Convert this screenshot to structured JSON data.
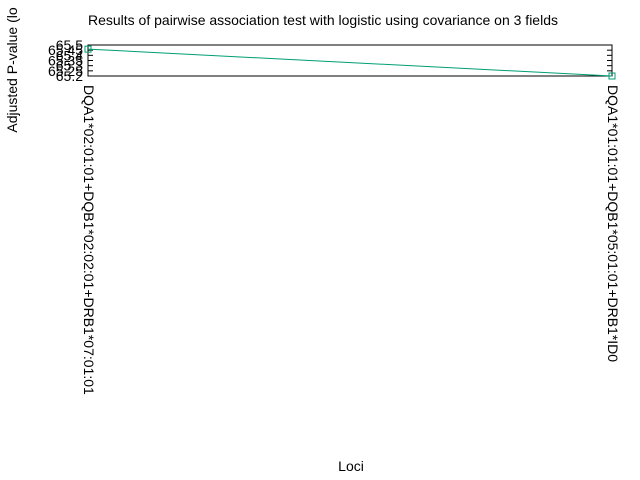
{
  "chart_data": {
    "type": "line",
    "title": "Results of pairwise association test with logistic using covariance on 3 fields",
    "xlabel": "Loci",
    "ylabel": "Adjusted P-value (lo",
    "categories": [
      "DQA1*02:01:01+DQB1*02:02:01+DRB1*07:01:01",
      "DQA1*01:01:01+DQB1*05:01:01+DRB1*ID0"
    ],
    "series": [
      {
        "values": [
          65.46,
          65.2
        ],
        "color": "#009e73"
      }
    ],
    "ylim": [
      65.2,
      65.5
    ],
    "yticks": [
      "65.5",
      "65.45",
      "65.4",
      "65.35",
      "65.3",
      "65.25",
      "65.2"
    ],
    "marker": "square",
    "grid": false,
    "legend": "none"
  }
}
